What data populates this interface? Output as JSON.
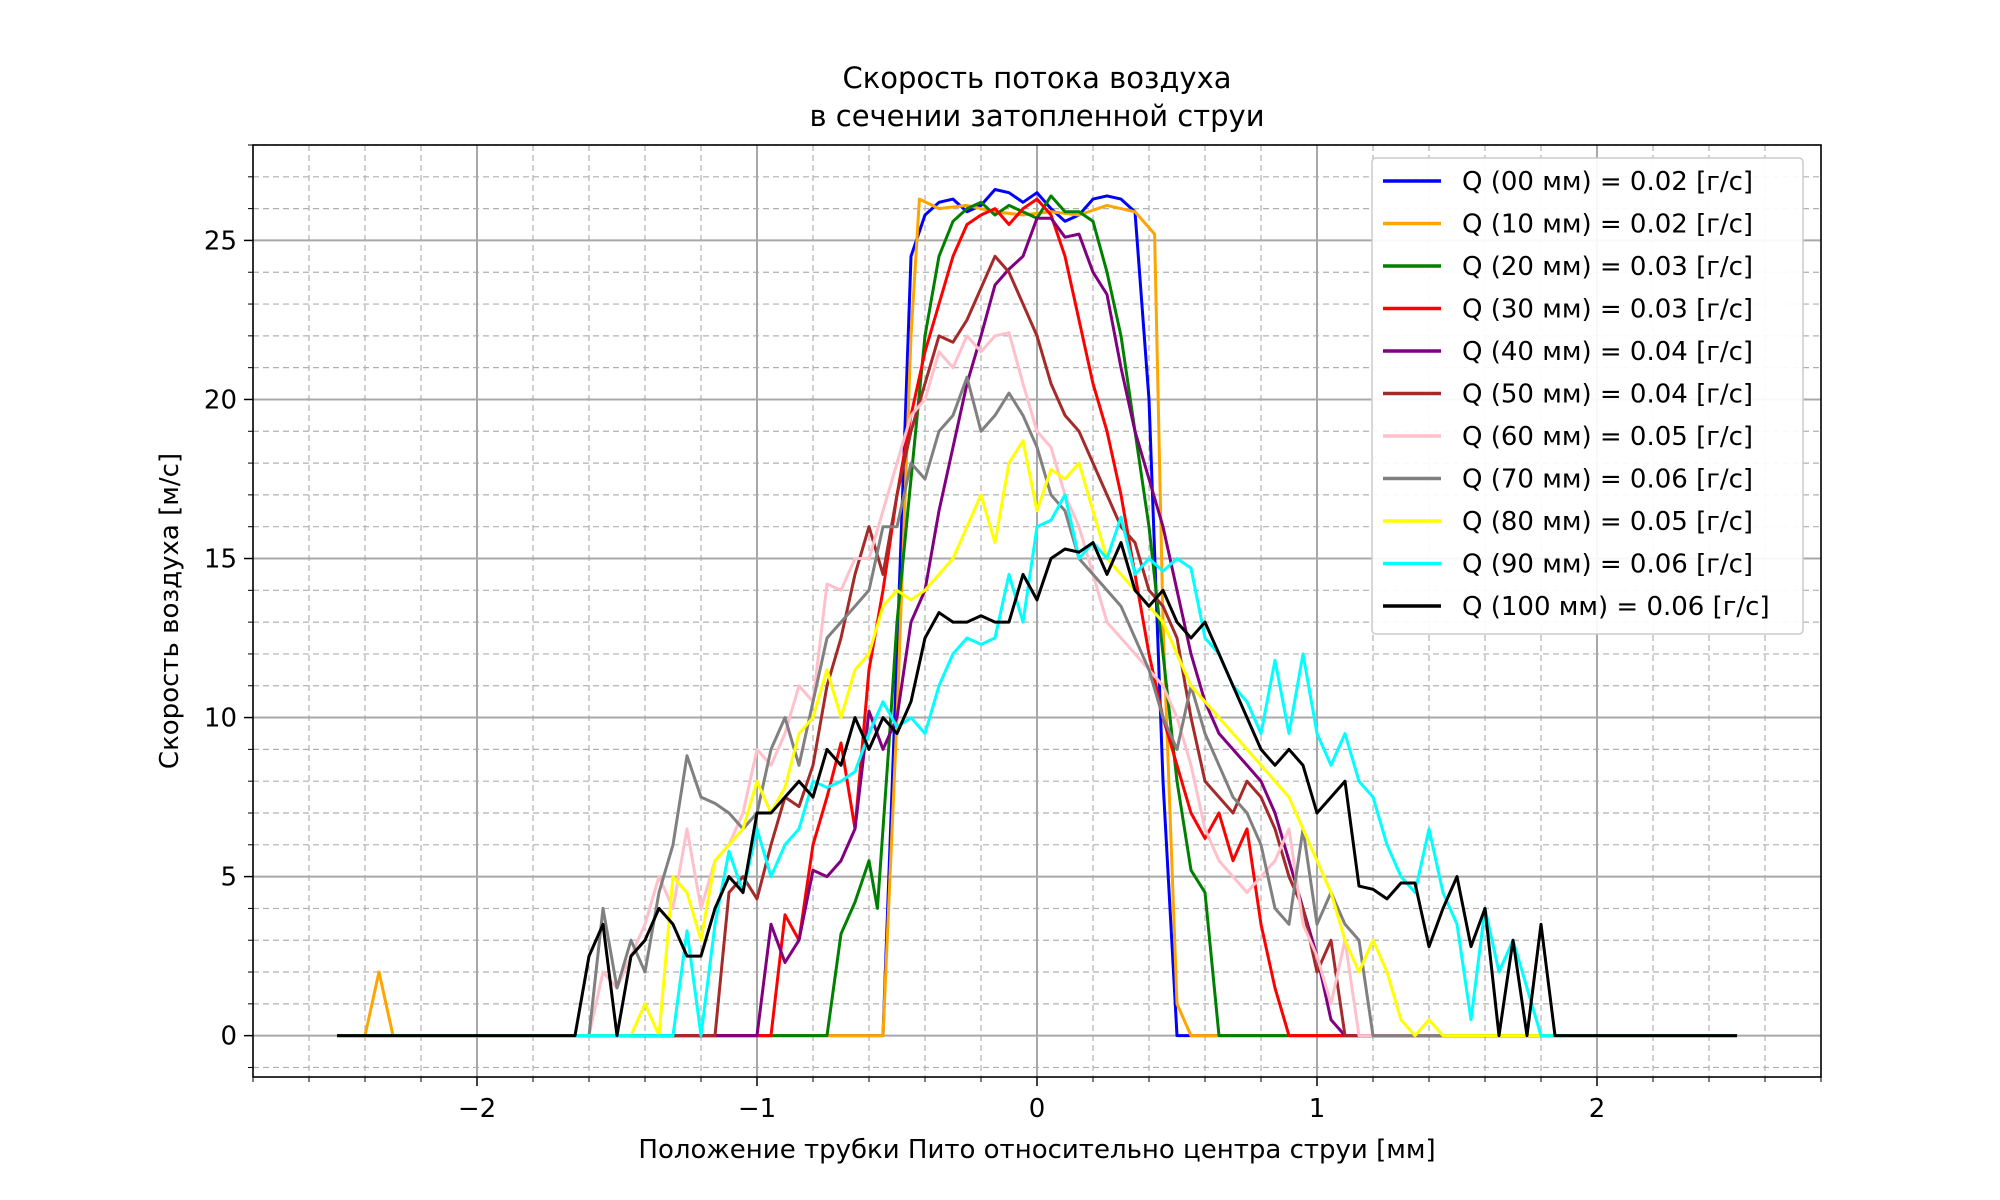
{
  "chart_data": {
    "type": "line",
    "title": [
      "Скорость потока воздуха",
      "в сечении затопленной струи"
    ],
    "xlabel": "Положение трубки Пито относительно центра струи [мм]",
    "ylabel": "Скорость воздуха [м/с]",
    "xlim": [
      -2.8,
      2.8
    ],
    "ylim": [
      -1.3,
      28
    ],
    "xticks": [
      -2,
      -1,
      0,
      1,
      2
    ],
    "xtick_labels": [
      "−2",
      "−1",
      "0",
      "1",
      "2"
    ],
    "yticks": [
      0,
      5,
      10,
      15,
      20,
      25
    ],
    "ytick_labels": [
      "0",
      "5",
      "10",
      "15",
      "20",
      "25"
    ],
    "grid": true,
    "legend_position": "top-right",
    "series": [
      {
        "name": "Q (00 мм) = 0.02 [г/с]",
        "color": "#0000ff",
        "x": [
          -2.5,
          -0.55,
          -0.5,
          -0.45,
          -0.4,
          -0.35,
          -0.3,
          -0.25,
          -0.2,
          -0.15,
          -0.1,
          -0.05,
          0.0,
          0.05,
          0.1,
          0.15,
          0.2,
          0.25,
          0.3,
          0.35,
          0.4,
          0.45,
          0.5,
          0.55,
          2.5
        ],
        "y": [
          0,
          0,
          12,
          24.5,
          25.8,
          26.2,
          26.3,
          25.9,
          26.1,
          26.6,
          26.5,
          26.2,
          26.5,
          26.0,
          25.6,
          25.8,
          26.3,
          26.4,
          26.3,
          25.9,
          20.0,
          8.0,
          0,
          0,
          0
        ]
      },
      {
        "name": "Q (10 мм) = 0.02 [г/с]",
        "color": "#ffa500",
        "x": [
          -2.5,
          -2.4,
          -2.35,
          -2.3,
          -0.6,
          -0.55,
          -0.5,
          -0.45,
          -0.42,
          -0.35,
          -0.25,
          -0.15,
          -0.05,
          0.05,
          0.15,
          0.25,
          0.35,
          0.42,
          0.45,
          0.5,
          0.55,
          0.6,
          2.5
        ],
        "y": [
          0,
          0,
          2.0,
          0,
          0,
          0,
          10,
          22,
          26.3,
          26.0,
          26.1,
          25.9,
          25.8,
          25.9,
          25.8,
          26.1,
          25.9,
          25.2,
          13.0,
          1.0,
          0,
          0,
          0
        ]
      },
      {
        "name": "Q (20 мм) = 0.03 [г/с]",
        "color": "#008000",
        "x": [
          -2.5,
          -0.75,
          -0.7,
          -0.65,
          -0.6,
          -0.57,
          -0.53,
          -0.5,
          -0.45,
          -0.4,
          -0.35,
          -0.3,
          -0.25,
          -0.2,
          -0.15,
          -0.1,
          -0.05,
          0.0,
          0.05,
          0.1,
          0.15,
          0.2,
          0.25,
          0.3,
          0.35,
          0.4,
          0.45,
          0.5,
          0.55,
          0.6,
          0.65,
          0.7,
          0.8,
          2.5
        ],
        "y": [
          0,
          0,
          3.2,
          4.2,
          5.5,
          4.0,
          9.0,
          13.0,
          17.5,
          22.0,
          24.5,
          25.6,
          26.0,
          26.2,
          25.8,
          26.1,
          25.9,
          25.7,
          26.4,
          25.9,
          25.9,
          25.6,
          24.0,
          22.0,
          19.0,
          16.0,
          12.0,
          8.0,
          5.2,
          4.5,
          0,
          0,
          0,
          0
        ]
      },
      {
        "name": "Q (30 мм) = 0.03 [г/с]",
        "color": "#ff0000",
        "x": [
          -2.5,
          -0.95,
          -0.9,
          -0.85,
          -0.8,
          -0.75,
          -0.7,
          -0.65,
          -0.6,
          -0.55,
          -0.5,
          -0.45,
          -0.4,
          -0.35,
          -0.3,
          -0.25,
          -0.2,
          -0.15,
          -0.1,
          -0.05,
          0.0,
          0.05,
          0.1,
          0.15,
          0.2,
          0.25,
          0.3,
          0.35,
          0.4,
          0.45,
          0.5,
          0.55,
          0.6,
          0.65,
          0.7,
          0.75,
          0.8,
          0.85,
          0.9,
          2.5
        ],
        "y": [
          0,
          0,
          3.8,
          3.0,
          6.0,
          7.5,
          9.2,
          6.5,
          11.5,
          14.0,
          17.0,
          19.5,
          21.5,
          23.0,
          24.5,
          25.5,
          25.8,
          26.0,
          25.5,
          26.0,
          26.3,
          25.8,
          24.5,
          22.5,
          20.5,
          19.0,
          17.0,
          14.5,
          12.0,
          10.0,
          8.5,
          7.0,
          6.2,
          7.0,
          5.5,
          6.5,
          3.5,
          1.5,
          0,
          0
        ]
      },
      {
        "name": "Q (40 мм) = 0.04 [г/с]",
        "color": "#800080",
        "x": [
          -2.5,
          -1.0,
          -0.95,
          -0.9,
          -0.85,
          -0.8,
          -0.75,
          -0.7,
          -0.65,
          -0.6,
          -0.55,
          -0.5,
          -0.45,
          -0.4,
          -0.35,
          -0.3,
          -0.25,
          -0.2,
          -0.15,
          -0.1,
          -0.05,
          0.0,
          0.05,
          0.1,
          0.15,
          0.2,
          0.25,
          0.3,
          0.35,
          0.4,
          0.45,
          0.5,
          0.55,
          0.6,
          0.65,
          0.7,
          0.75,
          0.8,
          0.85,
          0.9,
          0.95,
          1.0,
          1.05,
          1.1,
          1.15,
          2.5
        ],
        "y": [
          0,
          0,
          3.5,
          2.3,
          3.0,
          5.2,
          5.0,
          5.5,
          6.5,
          10.2,
          9.0,
          10.0,
          13.0,
          14.0,
          16.5,
          18.5,
          20.5,
          22.0,
          23.6,
          24.1,
          24.5,
          25.7,
          25.7,
          25.1,
          25.2,
          24.0,
          23.3,
          21.0,
          19.0,
          17.5,
          16.0,
          14.0,
          12.0,
          10.5,
          9.5,
          9.0,
          8.5,
          8.0,
          7.0,
          5.5,
          4.0,
          2.5,
          0.5,
          0,
          0,
          0
        ]
      },
      {
        "name": "Q (50 мм) = 0.04 [г/с]",
        "color": "#a52a2a",
        "x": [
          -2.5,
          -1.15,
          -1.1,
          -1.05,
          -1.0,
          -0.95,
          -0.9,
          -0.85,
          -0.8,
          -0.75,
          -0.7,
          -0.65,
          -0.6,
          -0.55,
          -0.5,
          -0.45,
          -0.4,
          -0.35,
          -0.3,
          -0.25,
          -0.2,
          -0.15,
          -0.1,
          -0.05,
          0.0,
          0.05,
          0.1,
          0.15,
          0.2,
          0.25,
          0.3,
          0.35,
          0.4,
          0.45,
          0.5,
          0.55,
          0.6,
          0.65,
          0.7,
          0.75,
          0.8,
          0.85,
          0.9,
          0.95,
          1.0,
          1.05,
          1.1,
          1.15,
          1.2,
          2.5
        ],
        "y": [
          0,
          0,
          4.5,
          5.0,
          4.3,
          6.0,
          7.5,
          7.2,
          8.5,
          11.0,
          12.5,
          14.5,
          16.0,
          14.5,
          17.0,
          19.0,
          20.5,
          22.0,
          21.8,
          22.5,
          23.5,
          24.5,
          24.0,
          23.0,
          22.0,
          20.5,
          19.5,
          19.0,
          18.0,
          17.0,
          16.0,
          15.5,
          14.0,
          13.5,
          12.5,
          10.0,
          8.0,
          7.5,
          7.0,
          8.0,
          7.5,
          6.5,
          5.0,
          4.0,
          2.0,
          3.0,
          0,
          0,
          0,
          0
        ]
      },
      {
        "name": "Q (60 мм) = 0.05 [г/с]",
        "color": "#ffc0cb",
        "x": [
          -2.5,
          -1.6,
          -1.55,
          -1.5,
          -1.45,
          -1.4,
          -1.35,
          -1.3,
          -1.25,
          -1.2,
          -1.15,
          -1.1,
          -1.05,
          -1.0,
          -0.95,
          -0.9,
          -0.85,
          -0.8,
          -0.75,
          -0.7,
          -0.65,
          -0.6,
          -0.55,
          -0.5,
          -0.45,
          -0.4,
          -0.35,
          -0.3,
          -0.25,
          -0.2,
          -0.15,
          -0.1,
          -0.05,
          0.0,
          0.05,
          0.1,
          0.15,
          0.2,
          0.25,
          0.3,
          0.35,
          0.4,
          0.45,
          0.5,
          0.55,
          0.6,
          0.65,
          0.7,
          0.75,
          0.8,
          0.85,
          0.9,
          0.95,
          1.0,
          1.05,
          1.1,
          1.15,
          1.2,
          1.3,
          2.5
        ],
        "y": [
          0,
          0,
          2.0,
          1.5,
          2.5,
          3.5,
          5.0,
          4.0,
          6.5,
          4.0,
          5.5,
          6.0,
          7.0,
          9.0,
          8.5,
          9.5,
          11.0,
          10.5,
          14.2,
          14.0,
          15.0,
          15.0,
          16.5,
          18.0,
          19.5,
          20.0,
          21.5,
          21.0,
          22.0,
          21.5,
          22.0,
          22.1,
          20.5,
          19.0,
          18.5,
          17.0,
          16.0,
          14.5,
          13.0,
          12.5,
          12.0,
          11.5,
          11.0,
          10.0,
          8.5,
          6.5,
          5.5,
          5.0,
          4.5,
          5.0,
          5.5,
          6.5,
          3.5,
          2.5,
          1.0,
          3.0,
          0,
          0,
          0,
          0
        ]
      },
      {
        "name": "Q (70 мм) = 0.06 [г/с]",
        "color": "#808080",
        "x": [
          -2.5,
          -1.6,
          -1.55,
          -1.5,
          -1.45,
          -1.4,
          -1.35,
          -1.3,
          -1.25,
          -1.2,
          -1.15,
          -1.1,
          -1.05,
          -1.0,
          -0.95,
          -0.9,
          -0.85,
          -0.8,
          -0.75,
          -0.7,
          -0.65,
          -0.6,
          -0.55,
          -0.5,
          -0.45,
          -0.4,
          -0.35,
          -0.3,
          -0.25,
          -0.2,
          -0.15,
          -0.1,
          -0.05,
          0.0,
          0.05,
          0.1,
          0.15,
          0.2,
          0.25,
          0.3,
          0.35,
          0.4,
          0.45,
          0.5,
          0.55,
          0.6,
          0.65,
          0.7,
          0.75,
          0.8,
          0.85,
          0.9,
          0.95,
          1.0,
          1.05,
          1.1,
          1.15,
          1.2,
          1.25,
          1.3,
          2.5
        ],
        "y": [
          0,
          0,
          4.0,
          1.5,
          3.0,
          2.0,
          4.5,
          6.0,
          8.8,
          7.5,
          7.3,
          7.0,
          6.5,
          7.0,
          9.0,
          10.0,
          8.5,
          10.5,
          12.5,
          13.0,
          13.5,
          14.0,
          16.0,
          16.0,
          18.0,
          17.5,
          19.0,
          19.5,
          20.7,
          19.0,
          19.5,
          20.2,
          19.5,
          18.5,
          17.0,
          16.5,
          15.0,
          14.5,
          14.0,
          13.5,
          12.5,
          11.5,
          10.0,
          9.0,
          11.0,
          9.5,
          8.5,
          7.5,
          7.0,
          6.0,
          4.0,
          3.5,
          6.5,
          3.5,
          4.5,
          3.5,
          3.0,
          0,
          0,
          0,
          0
        ]
      },
      {
        "name": "Q (80 мм) = 0.05 [г/с]",
        "color": "#ffff00",
        "x": [
          -2.5,
          -1.45,
          -1.4,
          -1.35,
          -1.3,
          -1.25,
          -1.2,
          -1.15,
          -1.1,
          -1.05,
          -1.0,
          -0.95,
          -0.9,
          -0.85,
          -0.8,
          -0.75,
          -0.7,
          -0.65,
          -0.6,
          -0.55,
          -0.5,
          -0.45,
          -0.4,
          -0.35,
          -0.3,
          -0.25,
          -0.2,
          -0.15,
          -0.1,
          -0.05,
          0.0,
          0.05,
          0.1,
          0.15,
          0.2,
          0.25,
          0.3,
          0.35,
          0.4,
          0.45,
          0.5,
          0.55,
          0.6,
          0.65,
          0.7,
          0.75,
          0.8,
          0.85,
          0.9,
          0.95,
          1.0,
          1.05,
          1.1,
          1.15,
          1.2,
          1.25,
          1.3,
          1.35,
          1.4,
          1.45,
          1.55,
          1.75,
          2.5
        ],
        "y": [
          0,
          0,
          1.0,
          0,
          5.0,
          4.5,
          3.0,
          5.5,
          6.0,
          6.5,
          8.0,
          7.0,
          7.8,
          9.5,
          10.0,
          11.5,
          10.0,
          11.5,
          12.0,
          13.5,
          14.0,
          13.7,
          14.0,
          14.5,
          15.0,
          16.0,
          17.0,
          15.5,
          18.0,
          18.7,
          16.5,
          17.8,
          17.5,
          18.0,
          16.5,
          15.0,
          14.5,
          14.0,
          13.5,
          13.0,
          12.0,
          11.0,
          10.5,
          10.0,
          9.5,
          9.0,
          8.5,
          8.0,
          7.5,
          6.5,
          5.5,
          4.5,
          3.0,
          2.0,
          3.0,
          2.0,
          0.5,
          0,
          0.5,
          0,
          0,
          0,
          0
        ]
      },
      {
        "name": "Q (90 мм) = 0.06 [г/с]",
        "color": "#00ffff",
        "x": [
          -2.5,
          -1.6,
          -1.55,
          -1.5,
          -1.45,
          -1.4,
          -1.35,
          -1.3,
          -1.25,
          -1.2,
          -1.15,
          -1.1,
          -1.05,
          -1.0,
          -0.95,
          -0.9,
          -0.85,
          -0.8,
          -0.75,
          -0.7,
          -0.65,
          -0.6,
          -0.55,
          -0.5,
          -0.45,
          -0.4,
          -0.35,
          -0.3,
          -0.25,
          -0.2,
          -0.15,
          -0.1,
          -0.05,
          0.0,
          0.05,
          0.1,
          0.15,
          0.2,
          0.25,
          0.3,
          0.35,
          0.4,
          0.45,
          0.5,
          0.55,
          0.6,
          0.65,
          0.7,
          0.75,
          0.8,
          0.85,
          0.9,
          0.95,
          1.0,
          1.05,
          1.1,
          1.15,
          1.2,
          1.25,
          1.3,
          1.35,
          1.4,
          1.45,
          1.5,
          1.55,
          1.6,
          1.65,
          1.7,
          1.75,
          1.8,
          1.85,
          2.5
        ],
        "y": [
          0,
          0,
          0,
          0,
          0,
          0,
          0,
          0,
          3.3,
          0,
          3.5,
          5.8,
          4.5,
          6.5,
          5.0,
          6.0,
          6.5,
          8.0,
          7.8,
          8.0,
          8.3,
          9.5,
          10.5,
          9.7,
          10.0,
          9.5,
          11.0,
          12.0,
          12.5,
          12.3,
          12.5,
          14.5,
          13.0,
          16.0,
          16.2,
          17.0,
          15.0,
          15.5,
          15.0,
          16.3,
          14.5,
          15.0,
          14.6,
          15.0,
          14.7,
          12.5,
          12.0,
          11.0,
          10.5,
          9.5,
          11.8,
          9.5,
          12.0,
          9.5,
          8.5,
          9.5,
          8.0,
          7.5,
          6.0,
          5.0,
          4.5,
          6.5,
          4.5,
          3.5,
          0.5,
          4.0,
          2.0,
          3.0,
          1.5,
          0,
          0,
          0
        ]
      },
      {
        "name": "Q (100 мм) = 0.06 [г/с]",
        "color": "#000000",
        "x": [
          -2.5,
          -1.65,
          -1.6,
          -1.55,
          -1.5,
          -1.45,
          -1.4,
          -1.35,
          -1.3,
          -1.25,
          -1.2,
          -1.15,
          -1.1,
          -1.05,
          -1.0,
          -0.95,
          -0.9,
          -0.85,
          -0.8,
          -0.75,
          -0.7,
          -0.65,
          -0.6,
          -0.55,
          -0.5,
          -0.45,
          -0.4,
          -0.35,
          -0.3,
          -0.25,
          -0.2,
          -0.15,
          -0.1,
          -0.05,
          0.0,
          0.05,
          0.1,
          0.15,
          0.2,
          0.25,
          0.3,
          0.35,
          0.4,
          0.45,
          0.5,
          0.55,
          0.6,
          0.65,
          0.7,
          0.75,
          0.8,
          0.85,
          0.9,
          0.95,
          1.0,
          1.05,
          1.1,
          1.15,
          1.2,
          1.25,
          1.3,
          1.35,
          1.4,
          1.45,
          1.5,
          1.55,
          1.6,
          1.65,
          1.7,
          1.75,
          1.8,
          1.85,
          2.5
        ],
        "y": [
          0,
          0,
          2.5,
          3.5,
          0,
          2.5,
          3.0,
          4.0,
          3.5,
          2.5,
          2.5,
          4.0,
          5.0,
          4.5,
          7.0,
          7.0,
          7.5,
          8.0,
          7.5,
          9.0,
          8.5,
          10.0,
          9.0,
          10.0,
          9.5,
          10.5,
          12.5,
          13.3,
          13.0,
          13.0,
          13.2,
          13.0,
          13.0,
          14.5,
          13.7,
          15.0,
          15.3,
          15.2,
          15.5,
          14.5,
          15.5,
          14.0,
          13.5,
          14.0,
          13.0,
          12.5,
          13.0,
          12.0,
          11.0,
          10.0,
          9.0,
          8.5,
          9.0,
          8.5,
          7.0,
          7.5,
          8.0,
          4.7,
          4.6,
          4.3,
          4.8,
          4.8,
          2.8,
          4.0,
          5.0,
          2.8,
          4.0,
          0,
          3.0,
          0,
          3.5,
          0,
          0
        ]
      }
    ]
  }
}
